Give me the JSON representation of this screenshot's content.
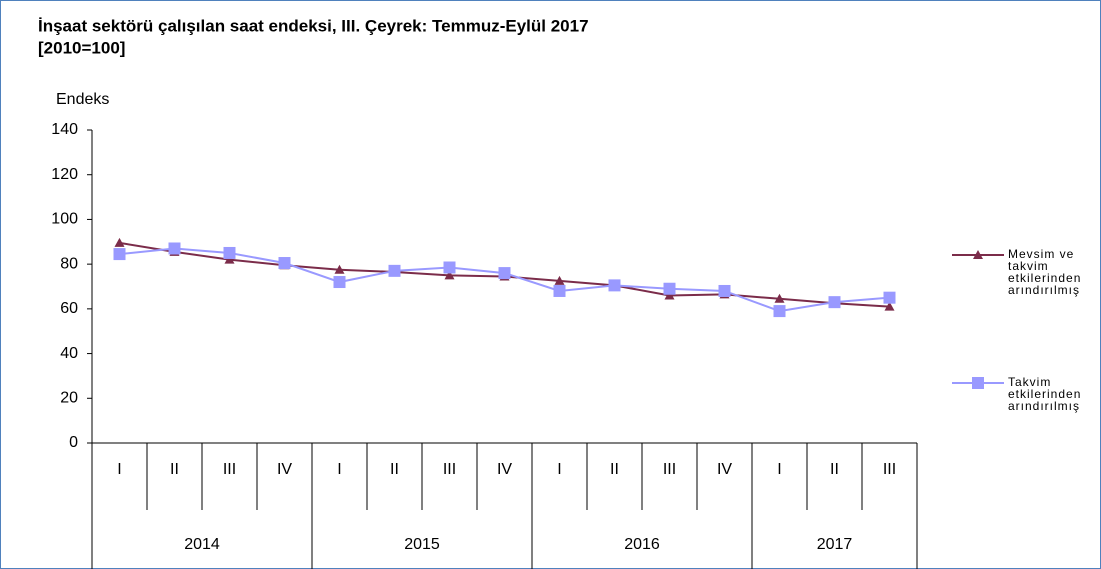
{
  "chart_data": {
    "type": "line",
    "title": "İnşaat sektörü çalışılan saat endeksi, III. Çeyrek: Temmuz-Eylül 2017",
    "subtitle": "[2010=100]",
    "y_label": "Endeks",
    "categories": [
      "I",
      "II",
      "III",
      "IV",
      "I",
      "II",
      "III",
      "IV",
      "I",
      "II",
      "III",
      "IV",
      "I",
      "II",
      "III"
    ],
    "category_groups": [
      {
        "label": "2014",
        "size": 4
      },
      {
        "label": "2015",
        "size": 4
      },
      {
        "label": "2016",
        "size": 4
      },
      {
        "label": "2017",
        "size": 3
      }
    ],
    "series": [
      {
        "name": "Mevsim ve takvim etkilerinden arındırılmış",
        "color": "#7b2c4a",
        "marker": "triangle",
        "values": [
          89.5,
          85.5,
          82,
          79.5,
          77.5,
          76.5,
          75,
          74.5,
          72.5,
          70.5,
          66,
          66.5,
          64.5,
          62.5,
          61
        ]
      },
      {
        "name": "Takvim etkilerinden arındırılmış",
        "color": "#9999ff",
        "marker": "square",
        "values": [
          84.5,
          87,
          85,
          80.5,
          72,
          77,
          78.5,
          76,
          68,
          70.5,
          69,
          68,
          59,
          63,
          65
        ]
      }
    ],
    "ylim": [
      0,
      140
    ],
    "yticks": [
      0,
      20,
      40,
      60,
      80,
      100,
      120,
      140
    ],
    "grid": false,
    "legend": "right"
  }
}
